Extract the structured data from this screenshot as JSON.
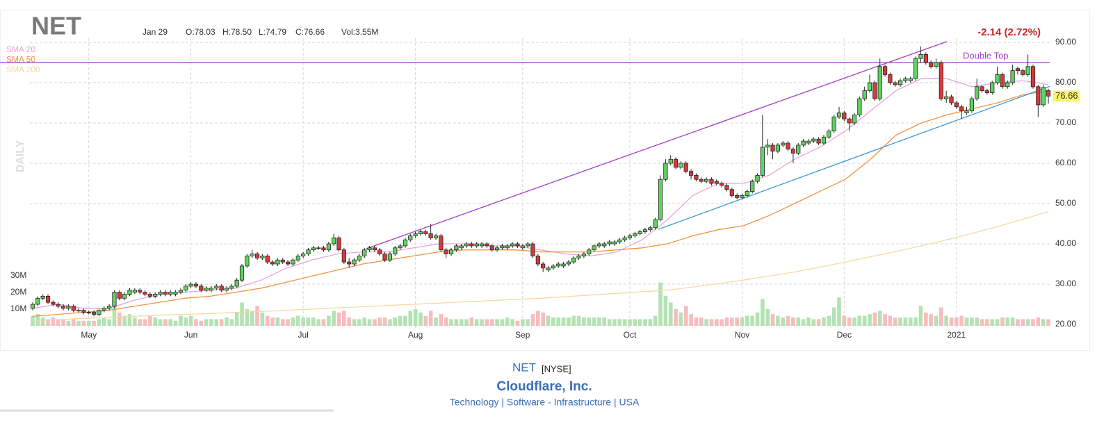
{
  "chart_data": {
    "type": "candlestick",
    "title": "NET",
    "header": {
      "date": "Jan 29",
      "open": "O:78.03",
      "high": "H:78.50",
      "low": "L:74.79",
      "close": "C:76.66",
      "volume": "Vol:3.55M",
      "change": "-2.14 (2.72%)"
    },
    "period": "DAILY",
    "open": [
      24,
      25,
      26.5,
      27,
      25.5,
      25,
      24.5,
      24,
      24.5,
      23.5,
      23.5,
      23,
      23,
      22.5,
      23.5,
      24,
      24.5,
      28,
      26.5,
      27.5,
      28,
      28.5,
      28,
      27.5,
      27,
      27.5,
      28,
      27.5,
      27.5,
      28,
      28.5,
      29.5,
      30,
      29.5,
      28.5,
      28.5,
      29,
      29.5,
      28.5,
      29,
      29.5,
      31,
      34.5,
      37,
      37.5,
      36.5,
      37,
      35.5,
      35,
      36,
      35.5,
      35,
      36,
      37,
      37.5,
      38.5,
      39,
      39,
      38.5,
      40,
      41.5,
      38.5,
      35.5,
      35,
      36,
      37,
      38.5,
      39,
      38.5,
      37.5,
      36,
      37.5,
      39,
      39.5,
      41,
      42,
      42.5,
      43,
      42.5,
      41.5,
      42,
      38.5,
      37.5,
      38.5,
      39,
      39.5,
      40,
      39.5,
      39.5,
      40,
      39.5,
      38.5,
      39,
      39,
      39.5,
      40,
      39,
      39.5,
      40,
      37,
      35,
      33.5,
      34,
      34.5,
      34.5,
      35,
      35.5,
      36.5,
      37,
      37.5,
      38.5,
      39.5,
      39.5,
      40,
      40,
      40.5,
      41,
      41.5,
      42,
      42.5,
      43,
      43.5,
      44,
      46,
      56,
      60,
      61,
      59,
      60,
      58,
      57,
      56,
      55.5,
      56,
      55.5,
      55,
      54.5,
      53.5,
      52,
      51.5,
      52,
      53,
      55.5,
      57,
      64,
      64.5,
      63,
      64.5,
      65,
      63.5,
      62.5,
      64.5,
      65,
      65.5,
      66,
      65,
      66.5,
      68,
      71.5,
      72.5,
      71,
      70,
      72,
      76,
      78,
      80,
      76,
      84,
      82,
      80,
      79.5,
      80.5,
      80.5,
      81,
      86,
      87,
      85,
      84,
      85,
      76,
      76.5,
      75,
      74,
      72.5,
      73,
      76,
      79,
      78,
      77.5,
      80,
      82,
      79,
      80,
      83.5,
      83,
      82,
      84,
      79,
      74.5,
      78.03
    ],
    "high": [
      25.5,
      27,
      27.5,
      27.5,
      26,
      25.5,
      25,
      25,
      25,
      24,
      24,
      23.5,
      23.5,
      24,
      24.5,
      25,
      28.5,
      28.5,
      28,
      29,
      29,
      29,
      28.5,
      28,
      28,
      28.5,
      28.5,
      28.5,
      28.5,
      29,
      30,
      30.5,
      30.5,
      30,
      29.5,
      29.5,
      30,
      30,
      29.5,
      30,
      31.5,
      35,
      37.5,
      38.5,
      38,
      37.5,
      37.5,
      36,
      36.5,
      36.5,
      36,
      36.5,
      37.5,
      38,
      39,
      39.5,
      39.5,
      39.5,
      40.5,
      42.5,
      42,
      39,
      36.5,
      36.5,
      37.5,
      39,
      39.5,
      39.5,
      39,
      38,
      38,
      39.5,
      40,
      41.5,
      42.5,
      43,
      43.5,
      43.5,
      45,
      42.5,
      42.5,
      39,
      39,
      40,
      40,
      40.5,
      40.5,
      40.5,
      40.5,
      40.5,
      40,
      39.5,
      40,
      40,
      40.5,
      40.5,
      40,
      40.5,
      40.5,
      37.5,
      35.5,
      34.5,
      35,
      35.5,
      35.5,
      36,
      37,
      37.5,
      38,
      39,
      40,
      40.5,
      40.5,
      41,
      41,
      41.5,
      42,
      42.5,
      43,
      43.5,
      44,
      44.5,
      46.5,
      57,
      61,
      62,
      61.5,
      60.5,
      60.5,
      58.5,
      57.5,
      56.5,
      56.5,
      56.5,
      56,
      55.5,
      55,
      54,
      52.5,
      52.5,
      53.5,
      56,
      57.5,
      72,
      66,
      65,
      65,
      65.5,
      65.5,
      64,
      65,
      66,
      66,
      66.5,
      66.5,
      67,
      68.5,
      72,
      74,
      73,
      71.5,
      72.5,
      76.5,
      79,
      82,
      80.5,
      86,
      84.5,
      82.5,
      80.5,
      81,
      81.5,
      81.5,
      86.5,
      89,
      87.5,
      85.5,
      86,
      85.5,
      78,
      77,
      75.5,
      74.5,
      74,
      76.5,
      81,
      79.5,
      78.5,
      80.5,
      84,
      82.5,
      80.5,
      84.5,
      84,
      83.5,
      87,
      84.5,
      79.5,
      79.5,
      78.5
    ],
    "low": [
      23.5,
      24.5,
      26,
      25,
      24.5,
      24,
      23.5,
      23.5,
      23,
      23,
      22.5,
      22.5,
      22,
      22,
      23,
      23.5,
      24,
      26,
      26,
      27,
      27.5,
      27.5,
      27,
      26.5,
      26.5,
      27,
      27,
      27,
      27,
      27.5,
      28,
      29,
      29,
      28,
      28,
      28,
      28.5,
      28,
      28,
      28.5,
      29,
      30.5,
      34,
      36.5,
      36,
      36,
      35,
      34.5,
      34.5,
      35,
      34.5,
      34.5,
      35.5,
      36.5,
      37,
      38,
      38.5,
      38,
      38,
      39.5,
      38,
      35,
      34,
      34.5,
      35.5,
      36.5,
      38,
      38,
      37,
      35.5,
      35.5,
      37,
      38.5,
      39,
      40.5,
      41.5,
      42,
      42,
      41,
      41,
      38,
      36.5,
      37,
      38,
      38.5,
      39,
      39,
      39,
      39,
      39,
      38,
      38,
      38.5,
      38.5,
      39,
      39,
      38.5,
      39,
      36.5,
      34.5,
      33,
      33,
      33.5,
      34,
      34,
      34.5,
      35,
      36,
      36.5,
      37,
      38,
      39,
      39,
      39.5,
      39.5,
      40,
      40.5,
      41,
      41.5,
      42,
      42.5,
      43,
      43.5,
      45.5,
      55.5,
      59.5,
      58.5,
      58.5,
      57.5,
      56,
      55.5,
      55,
      55,
      54.5,
      54.5,
      54,
      53,
      51.5,
      51,
      51,
      51.5,
      52.5,
      55,
      56.5,
      62,
      61,
      62.5,
      64,
      63,
      60,
      62,
      64,
      64.5,
      65,
      64.5,
      64.5,
      66,
      67.5,
      71,
      70.5,
      68,
      69.5,
      71.5,
      75.5,
      77.5,
      75.5,
      75.5,
      81.5,
      79.5,
      79,
      79,
      80,
      80,
      80.5,
      85,
      84.5,
      83.5,
      83.5,
      75.5,
      75,
      74.5,
      73.5,
      71,
      72,
      72.5,
      75.5,
      77.5,
      77,
      77,
      79.5,
      78.5,
      78.5,
      79.5,
      82,
      81.5,
      81.5,
      78.5,
      71.5,
      74,
      74.79
    ],
    "close": [
      25,
      26.5,
      27,
      25.5,
      25,
      24.5,
      24,
      24.5,
      23.5,
      23.5,
      23,
      23,
      22.5,
      23.5,
      24,
      24.5,
      28,
      26.5,
      27.5,
      28.5,
      28.5,
      28,
      27.5,
      27,
      27.5,
      28,
      27.5,
      28,
      28,
      28.5,
      29.5,
      30,
      29.5,
      28.5,
      29,
      29,
      29.5,
      28.5,
      29,
      29.5,
      31,
      34.5,
      37,
      37.5,
      36.5,
      37,
      35.5,
      35,
      36,
      35.5,
      35,
      36,
      37,
      37.5,
      38.5,
      39,
      39,
      38.5,
      40,
      41.5,
      38.5,
      35.5,
      35,
      36,
      37,
      38.5,
      39,
      38.5,
      37.5,
      36,
      37.5,
      39,
      39.5,
      41,
      42,
      42.5,
      43,
      42.5,
      41.5,
      42,
      38.5,
      37.5,
      38.5,
      39.5,
      39.5,
      40,
      39.5,
      40,
      40,
      39.5,
      38.5,
      39,
      39.5,
      39.5,
      40,
      39.5,
      39.5,
      40,
      37,
      35,
      34,
      34,
      34.5,
      35,
      35,
      35.5,
      36.5,
      37,
      37.5,
      38.5,
      39.5,
      40,
      40,
      40.5,
      40.5,
      41,
      41.5,
      42,
      42.5,
      43,
      43.5,
      44,
      46,
      56,
      60,
      61,
      59,
      60,
      58,
      57,
      56,
      55.5,
      56,
      55,
      55,
      54.5,
      53.5,
      52,
      51.5,
      52,
      53,
      55.5,
      57,
      64,
      64.5,
      63,
      64.5,
      65,
      63.5,
      62.5,
      64.5,
      65.5,
      65.5,
      66,
      65,
      66.5,
      68,
      71.5,
      72.5,
      71,
      70,
      72,
      76,
      78,
      80,
      76,
      84,
      82,
      80,
      79.5,
      80.5,
      81,
      81,
      86,
      87,
      85,
      84,
      85,
      76,
      76.5,
      75,
      74,
      73,
      73,
      76,
      79,
      78,
      77.5,
      80,
      82,
      79,
      80,
      83,
      83,
      82,
      84,
      79,
      74.5,
      78.8,
      76.66
    ],
    "volume": [
      6,
      7,
      5,
      4,
      5,
      4,
      4,
      3,
      4,
      3,
      3,
      3,
      3,
      4,
      5,
      4,
      12,
      8,
      6,
      7,
      5,
      4,
      4,
      6,
      5,
      4,
      4,
      4,
      3,
      6,
      5,
      6,
      4,
      3,
      4,
      4,
      4,
      4,
      5,
      4,
      8,
      14,
      10,
      9,
      12,
      8,
      6,
      5,
      5,
      4,
      4,
      5,
      6,
      5,
      5,
      5,
      4,
      4,
      6,
      9,
      8,
      9,
      5,
      4,
      4,
      5,
      4,
      4,
      5,
      5,
      4,
      5,
      6,
      6,
      9,
      10,
      8,
      6,
      9,
      5,
      7,
      5,
      4,
      4,
      4,
      4,
      5,
      4,
      4,
      4,
      4,
      4,
      4,
      5,
      4,
      3,
      4,
      4,
      7,
      9,
      8,
      6,
      5,
      5,
      5,
      5,
      6,
      6,
      5,
      5,
      5,
      5,
      5,
      4,
      4,
      4,
      4,
      4,
      4,
      4,
      4,
      4,
      6,
      26,
      18,
      14,
      10,
      8,
      12,
      7,
      5,
      5,
      4,
      4,
      4,
      4,
      5,
      5,
      5,
      5,
      6,
      6,
      8,
      16,
      10,
      7,
      6,
      5,
      6,
      5,
      5,
      4,
      5,
      4,
      4,
      5,
      6,
      11,
      17,
      6,
      5,
      5,
      6,
      6,
      7,
      8,
      9,
      7,
      6,
      5,
      5,
      5,
      5,
      5,
      12,
      8,
      7,
      6,
      11,
      6,
      5,
      5,
      6,
      5,
      5,
      5,
      4,
      4,
      4,
      4,
      5,
      5,
      5,
      4,
      4,
      4,
      4,
      5,
      4,
      4
    ],
    "up_color": "#5fd35f",
    "down_color": "#d63a3a",
    "volume_up_color": "#b3e2b3",
    "volume_down_color": "#f7bcbc",
    "series": [
      {
        "name": "SMA 20",
        "color": "#e9a3dc",
        "values": [
          24,
          25,
          24,
          24,
          26,
          27.5,
          28,
          28.5,
          29,
          31,
          34,
          36,
          37.5,
          38,
          38,
          39,
          40,
          40,
          39.5,
          39.5,
          38.5,
          37.5,
          37,
          38,
          41,
          46,
          52,
          55,
          55,
          57,
          61,
          64,
          68,
          73,
          78,
          81,
          81,
          79,
          80,
          80.5,
          79.5
        ]
      },
      {
        "name": "SMA 50",
        "color": "#f2933e",
        "values": [
          22,
          22.5,
          23,
          23.5,
          24.5,
          25.5,
          26.5,
          27,
          28,
          29,
          30.5,
          32,
          33.5,
          35,
          36,
          37,
          38,
          38.5,
          38.5,
          38.5,
          38,
          38,
          38,
          38.5,
          39,
          40,
          42,
          43.5,
          44.5,
          47,
          50,
          53,
          56,
          61,
          67,
          70,
          72,
          73.5,
          75,
          77,
          78
        ]
      },
      {
        "name": "SMA 200",
        "color": "#f6d9a0",
        "values": [
          21,
          21.2,
          21.5,
          21.7,
          22,
          22.3,
          22.5,
          22.7,
          23,
          23.2,
          23.5,
          23.8,
          24.1,
          24.4,
          24.7,
          25,
          25.3,
          25.6,
          25.9,
          26.2,
          26.5,
          26.9,
          27.3,
          27.7,
          28.1,
          28.5,
          29.3,
          30.1,
          31,
          32,
          33,
          34.2,
          35.5,
          36.8,
          38.1,
          39.5,
          41,
          42.6,
          44.3,
          46.1,
          48
        ]
      }
    ],
    "trendlines": [
      {
        "color": "#a23cc4",
        "values": [
          38.8,
          90.2
        ]
      },
      {
        "color": "#3a9ad9",
        "values": [
          43.6,
          79.1
        ]
      }
    ],
    "hlines": [
      {
        "value": 85,
        "label": "Double Top",
        "color": "#a23cc4"
      }
    ],
    "ylim": [
      19.5,
      92
    ],
    "yticks": [
      {
        "value": 20,
        "label": "20.00"
      },
      {
        "value": 30,
        "label": "30.00"
      },
      {
        "value": 40,
        "label": "40.00"
      },
      {
        "value": 50,
        "label": "50.00"
      },
      {
        "value": 60,
        "label": "60.00"
      },
      {
        "value": 70,
        "label": "70.00"
      },
      {
        "value": 80,
        "label": "80.00"
      },
      {
        "value": 90,
        "label": "90.00"
      }
    ],
    "volume_ylim": [
      0,
      100
    ],
    "volume_ticks": [
      {
        "value": 10,
        "label": "10M"
      },
      {
        "value": 20,
        "label": "20M"
      },
      {
        "value": 30,
        "label": "30M"
      }
    ],
    "xlim": [
      0,
      199
    ],
    "xticks": [
      {
        "value": 11,
        "label": "May"
      },
      {
        "value": 31,
        "label": "Jun"
      },
      {
        "value": 53,
        "label": "Jul"
      },
      {
        "value": 75,
        "label": "Aug"
      },
      {
        "value": 96,
        "label": "Sep"
      },
      {
        "value": 117,
        "label": "Oct"
      },
      {
        "value": 139,
        "label": "Nov"
      },
      {
        "value": 159,
        "label": "Dec"
      },
      {
        "value": 181,
        "label": "2021"
      }
    ],
    "grid": true
  },
  "footer": {
    "ticker": "NET",
    "exchange": "[NYSE]",
    "company": "Cloudflare, Inc.",
    "sector": "Technology | Software - Infrastructure | USA"
  }
}
